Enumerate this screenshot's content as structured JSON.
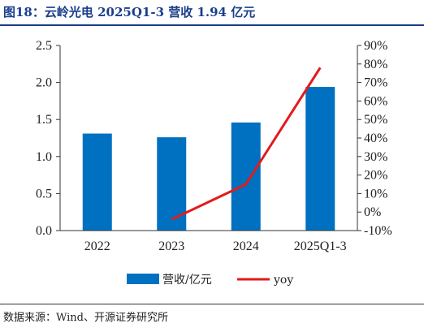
{
  "header": {
    "title": "图18：云岭光电 2025Q1-3 营收 1.94 亿元",
    "source": "数据来源：Wind、开源证券研究所"
  },
  "colors": {
    "bar": "#0070c0",
    "line": "#e31a1c",
    "title": "#1a3e8c"
  },
  "chart_data": {
    "type": "bar",
    "categories": [
      "2022",
      "2023",
      "2024",
      "2025Q1-3"
    ],
    "series": [
      {
        "name": "营收/亿元",
        "type": "bar",
        "axis": "left",
        "values": [
          1.31,
          1.26,
          1.46,
          1.94
        ]
      },
      {
        "name": "yoy",
        "type": "line",
        "axis": "right",
        "values": [
          null,
          -4,
          15,
          78
        ]
      }
    ],
    "y_left": {
      "min": 0,
      "max": 2.5,
      "ticks": [
        "0.0",
        "0.5",
        "1.0",
        "1.5",
        "2.0",
        "2.5"
      ]
    },
    "y_right": {
      "min": -10,
      "max": 90,
      "ticks": [
        "-10%",
        "0%",
        "10%",
        "20%",
        "30%",
        "40%",
        "50%",
        "60%",
        "70%",
        "80%",
        "90%"
      ]
    },
    "legend_position": "bottom",
    "grid": false
  }
}
